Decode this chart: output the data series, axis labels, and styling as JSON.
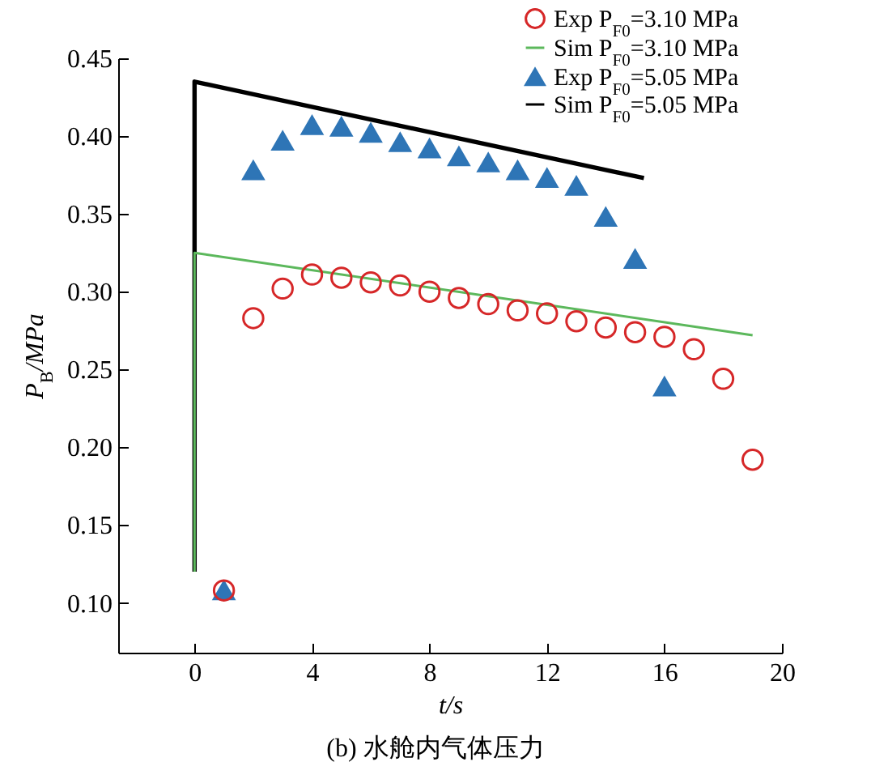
{
  "chart_data": {
    "type": "scatter",
    "xlabel": "t/s",
    "ylabel": "P$_{B}$/MPa",
    "annotations": [
      "(b) 水舱内气体压力"
    ],
    "xlim": [
      -2.6,
      20
    ],
    "ylim": [
      0.068,
      0.45
    ],
    "xticks": [
      0,
      4,
      8,
      12,
      16,
      20
    ],
    "yticks": [
      {
        "value": 0.1,
        "label": "0.10"
      },
      {
        "value": 0.15,
        "label": "0.15"
      },
      {
        "value": 0.2,
        "label": "0.20"
      },
      {
        "value": 0.25,
        "label": "0.25"
      },
      {
        "value": 0.3,
        "label": "0.30"
      },
      {
        "value": 0.35,
        "label": "0.35"
      },
      {
        "value": 0.4,
        "label": "0.40"
      },
      {
        "value": 0.45,
        "label": "0.45"
      }
    ],
    "legend": "top right",
    "grid": false,
    "series": [
      {
        "name": "Exp P$_{F0}$=3.10 MPa",
        "type": "scatter",
        "marker": "circle",
        "color": "#d62728",
        "x": [
          1,
          2,
          3,
          4,
          5,
          6,
          7,
          8,
          9,
          10,
          11,
          12,
          13,
          14,
          15,
          16,
          17,
          18,
          19
        ],
        "values": [
          0.108,
          0.283,
          0.302,
          0.311,
          0.309,
          0.306,
          0.304,
          0.3,
          0.296,
          0.292,
          0.288,
          0.286,
          0.281,
          0.277,
          0.274,
          0.271,
          0.263,
          0.244,
          0.192
        ]
      },
      {
        "name": "Sim P$_{F0}$=3.10 MPa",
        "type": "line",
        "color": "#5cb85c",
        "x": [
          0,
          0,
          19
        ],
        "values": [
          0.12,
          0.325,
          0.272
        ]
      },
      {
        "name": "Exp P$_{F0}$=5.05 MPa",
        "type": "scatter",
        "marker": "triangle",
        "color": "#2e75b6",
        "x": [
          1,
          2,
          3,
          4,
          5,
          6,
          7,
          8,
          9,
          10,
          11,
          12,
          13,
          14,
          15,
          16
        ],
        "values": [
          0.108,
          0.378,
          0.397,
          0.407,
          0.406,
          0.402,
          0.396,
          0.392,
          0.387,
          0.383,
          0.378,
          0.373,
          0.368,
          0.348,
          0.321,
          0.239
        ]
      },
      {
        "name": "Sim P$_{F0}$=5.05 MPa",
        "type": "line",
        "color": "#000000",
        "x": [
          0,
          0,
          15.3
        ],
        "values": [
          0.12,
          0.435,
          0.373
        ]
      }
    ]
  }
}
